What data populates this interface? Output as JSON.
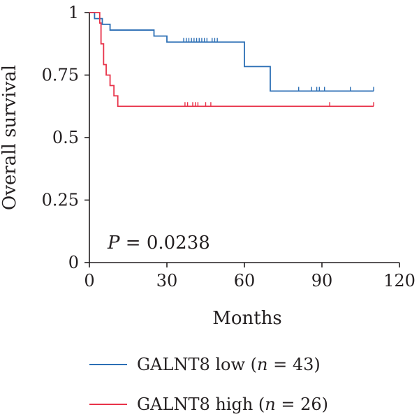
{
  "chart_data": {
    "type": "line",
    "subtype": "kaplan-meier",
    "title": "",
    "xlabel": "Months",
    "ylabel": "Overall survival",
    "xlim": [
      0,
      120
    ],
    "ylim": [
      0,
      1
    ],
    "xticks": [
      "0",
      "30",
      "60",
      "90",
      "120"
    ],
    "yticks": [
      "0",
      "0.25",
      "0.5",
      "0.75",
      "1"
    ],
    "grid": false,
    "annotation": {
      "prefix": "P",
      "text": " = 0.0238"
    },
    "legend_position": "bottom",
    "series": [
      {
        "name": "GALNT8 low",
        "legend_prefix": "GALNT8 low (",
        "legend_n_symbol": "n",
        "legend_suffix": " = 43)",
        "color": "#2c6fb5",
        "steps": [
          [
            0,
            1.0
          ],
          [
            2,
            0.976
          ],
          [
            5,
            0.953
          ],
          [
            8,
            0.93
          ],
          [
            25,
            0.906
          ],
          [
            30,
            0.882
          ],
          [
            60,
            0.784
          ],
          [
            70,
            0.686
          ],
          [
            110,
            0.686
          ]
        ],
        "censored": [
          36.5,
          37.5,
          38.5,
          39.5,
          40.5,
          41.5,
          42.5,
          43.5,
          44.5,
          45.5,
          47.5,
          48.5,
          49.5,
          81,
          86,
          88,
          89,
          91,
          101,
          110
        ]
      },
      {
        "name": "GALNT8 high",
        "legend_prefix": "GALNT8 high (",
        "legend_n_symbol": "n",
        "legend_suffix": " = 26)",
        "color": "#e8334a",
        "steps": [
          [
            0,
            1.0
          ],
          [
            4,
            0.958
          ],
          [
            4.5,
            0.875
          ],
          [
            5.5,
            0.792
          ],
          [
            6.5,
            0.75
          ],
          [
            8,
            0.708
          ],
          [
            9.5,
            0.667
          ],
          [
            11,
            0.625
          ],
          [
            110,
            0.625
          ]
        ],
        "censored": [
          37,
          38,
          40,
          41,
          42,
          45,
          47,
          93,
          110
        ]
      }
    ]
  }
}
